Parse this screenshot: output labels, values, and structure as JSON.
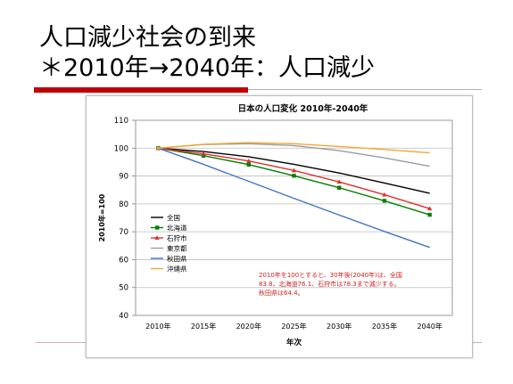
{
  "slide": {
    "title_line1": "人口減少社会の到来",
    "title_line2": "＊2010年→2040年：人口減少"
  },
  "chart_data": {
    "type": "line",
    "title": "日本の人口変化 2010年-2040年",
    "xlabel": "年次",
    "ylabel": "2010年=100",
    "categories": [
      "2010年",
      "2015年",
      "2020年",
      "2025年",
      "2030年",
      "2035年",
      "2040年"
    ],
    "ylim": [
      40,
      110
    ],
    "yticks": [
      40,
      50,
      60,
      70,
      80,
      90,
      100,
      110
    ],
    "grid": true,
    "legend_position": "left-center",
    "series": [
      {
        "name": "全国",
        "color": "#000000",
        "marker": "none",
        "values": [
          100,
          98.8,
          96.9,
          94.2,
          91.1,
          87.5,
          83.8
        ]
      },
      {
        "name": "北海道",
        "color": "#008000",
        "marker": "square",
        "values": [
          100,
          97.3,
          94.1,
          90.1,
          85.8,
          81.1,
          76.1
        ]
      },
      {
        "name": "石狩市",
        "color": "#e03030",
        "marker": "triangle",
        "values": [
          100,
          98.0,
          95.4,
          92.0,
          87.9,
          83.3,
          78.3
        ]
      },
      {
        "name": "東京都",
        "color": "#9a9aa8",
        "marker": "none",
        "values": [
          100,
          101.3,
          101.6,
          100.9,
          99.1,
          96.5,
          93.5
        ]
      },
      {
        "name": "秋田県",
        "color": "#4472c4",
        "marker": "none",
        "values": [
          100,
          94.2,
          88.1,
          82.0,
          76.0,
          70.1,
          64.4
        ]
      },
      {
        "name": "沖縄県",
        "color": "#f0a830",
        "marker": "none",
        "values": [
          100,
          101.4,
          102.0,
          101.6,
          100.6,
          99.5,
          98.3
        ]
      }
    ],
    "annotation": [
      "2010年を100とすると、30年後(2040年)は、全国",
      "83.8、北海道76.1、石狩市は78.3まで減少する。",
      "秋田県は64.4。"
    ],
    "annotation_color": "#d02020"
  }
}
